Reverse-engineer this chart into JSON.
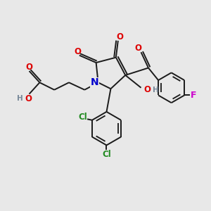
{
  "bg_color": "#e8e8e8",
  "bond_color": "#1a1a1a",
  "atom_colors": {
    "O": "#dd0000",
    "N": "#0000cc",
    "Cl": "#228B22",
    "F": "#cc00cc",
    "H": "#778899",
    "C": "#1a1a1a"
  },
  "lw": 1.4,
  "fs": 8.5
}
